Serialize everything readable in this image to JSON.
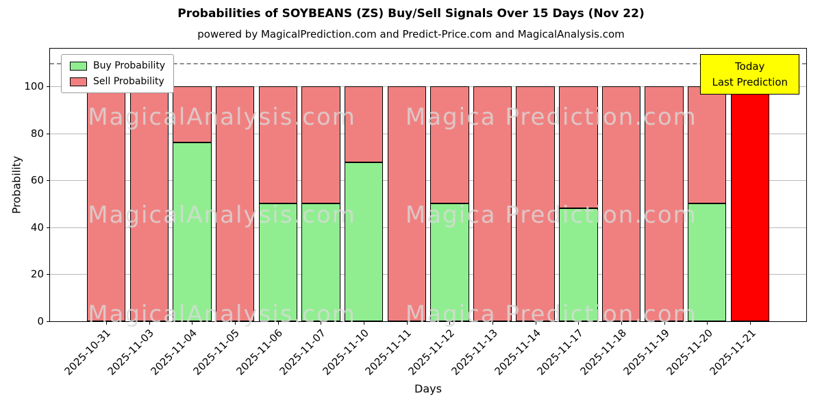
{
  "title": "Probabilities of SOYBEANS (ZS) Buy/Sell Signals Over 15 Days (Nov 22)",
  "subtitle": "powered by MagicalPrediction.com and Predict-Price.com and MagicalAnalysis.com",
  "legend": {
    "items": [
      {
        "label": "Buy Probability",
        "color": "#90ee90"
      },
      {
        "label": "Sell Probability",
        "color": "#f08080"
      }
    ]
  },
  "today_box": {
    "line1": "Today",
    "line2": "Last Prediction",
    "bg": "#ffff00"
  },
  "watermarks": [
    "MagicalAnalysis.com",
    "Magica Prediction.com"
  ],
  "chart_data": {
    "type": "bar",
    "stacked": true,
    "title": "Probabilities of SOYBEANS (ZS) Buy/Sell Signals Over 15 Days (Nov 22)",
    "xlabel": "Days",
    "ylabel": "Probability",
    "ylim": [
      0,
      116
    ],
    "yticks": [
      0,
      20,
      40,
      60,
      80,
      100
    ],
    "dashed_line_y": 110,
    "grid": true,
    "legend_position": "upper left",
    "categories": [
      "2025-10-31",
      "2025-11-03",
      "2025-11-04",
      "2025-11-05",
      "2025-11-06",
      "2025-11-07",
      "2025-11-10",
      "2025-11-11",
      "2025-11-12",
      "2025-11-13",
      "2025-11-14",
      "2025-11-17",
      "2025-11-18",
      "2025-11-19",
      "2025-11-20",
      "2025-11-21"
    ],
    "series": [
      {
        "name": "Buy Probability",
        "color": "#90ee90",
        "values": [
          0,
          0,
          76,
          0,
          50,
          50,
          67.5,
          0,
          50,
          0,
          0,
          48,
          0,
          0,
          50,
          0
        ]
      },
      {
        "name": "Sell Probability",
        "color": "#f08080",
        "values": [
          100,
          100,
          24,
          100,
          50,
          50,
          32.5,
          100,
          50,
          100,
          100,
          52,
          100,
          100,
          50,
          100
        ]
      }
    ],
    "today_index": 15,
    "today_color": "#ff0000"
  }
}
